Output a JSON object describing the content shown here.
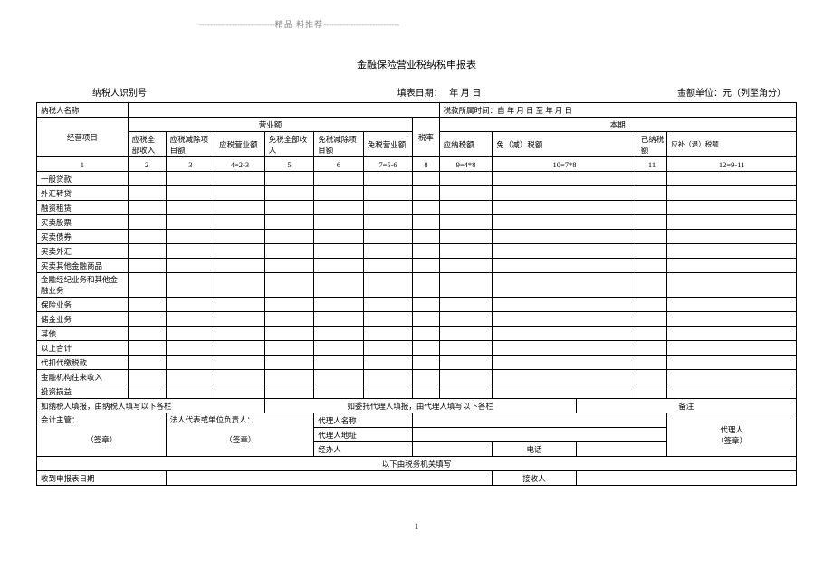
{
  "header_decor": "精品  料推荐",
  "title": "金融保险营业税纳税申报表",
  "meta": {
    "taxpayer_id_label": "纳税人识别号",
    "fill_date_label": "填表日期：",
    "fill_date_fmt": "年    月    日",
    "unit_label": "金额单位：元（列至角分）"
  },
  "labels": {
    "taxpayer_name": "纳税人名称",
    "tax_period": "税款所属时间：自    年  月  日 至  年  月  日",
    "business_item": "经营项目",
    "turnover": "营业额",
    "tax_rate": "税率",
    "this_period": "本期",
    "c2": "应税全部收入",
    "c3": "应税减除项目额",
    "c4": "应税营业额",
    "c5": "免税全部收入",
    "c6": "免税减除项目额",
    "c7": "免税营业额",
    "c9": "应纳税额",
    "c10": "免（减）税额",
    "c11": "已纳税额",
    "c12": "应补（退）税额",
    "f1": "1",
    "f2": "2",
    "f3": "3",
    "f4": "4=2-3",
    "f5": "5",
    "f6": "6",
    "f7": "7=5-6",
    "f8": "8",
    "f9": "9=4*8",
    "f10": "10=7*8",
    "f11": "11",
    "f12": "12=9-11"
  },
  "rows": [
    "一般贷款",
    "外汇转贷",
    "融资租赁",
    "买卖股票",
    "买卖债券",
    "买卖外汇",
    "买卖其他金融商品",
    "金融经纪业务和其他金融业务",
    "保险业务",
    "储金业务",
    "其他",
    "以上合计",
    "代扣代缴税款",
    "金融机构往来收入",
    "投资损益"
  ],
  "footer": {
    "self_note": "如纳税人填报，由纳税人填写以下各栏",
    "agent_note": "如委托代理人填报，由代理人填写以下各栏",
    "remark": "备注",
    "accountant": "会计主管：",
    "legal_rep": "法人代表或单位负责人：",
    "seal": "（签章）",
    "agent_name": "代理人名称",
    "agent_addr": "代理人地址",
    "handler": "经办人",
    "phone": "电话",
    "agent_seal_l1": "代理人",
    "agent_seal_l2": "（签章）",
    "tax_office": "以下由税务机关填写",
    "receive_date": "收到申报表日期",
    "receiver": "接收人"
  },
  "page_num": "1"
}
